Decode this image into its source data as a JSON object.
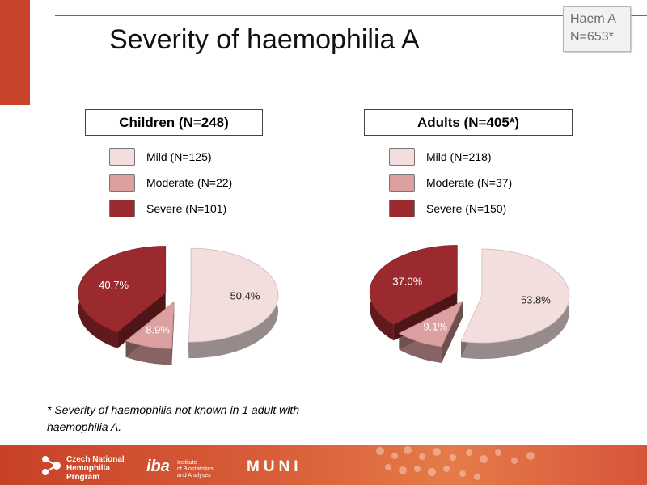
{
  "slide": {
    "title": "Severity of haemophilia A",
    "badge_line1": "Haem A",
    "badge_line2": "N=653*",
    "footnote": "* Severity of haemophilia not known in 1 adult with haemophilia A."
  },
  "colors": {
    "accent": "#c9432a",
    "mild": "#f3dede",
    "moderate": "#dca0a0",
    "severe": "#9b2a2e"
  },
  "chart_data": [
    {
      "type": "pie",
      "title": "Children (N=248)",
      "legend": [
        "Mild (N=125)",
        "Moderate (N=22)",
        "Severe (N=101)"
      ],
      "categories": [
        "Mild",
        "Moderate",
        "Severe"
      ],
      "values": [
        50.4,
        8.9,
        40.7
      ],
      "labels": [
        "50.4%",
        "8.9%",
        "40.7%"
      ],
      "legend_position": "top"
    },
    {
      "type": "pie",
      "title": "Adults (N=405*)",
      "legend": [
        "Mild (N=218)",
        "Moderate (N=37)",
        "Severe (N=150)"
      ],
      "categories": [
        "Mild",
        "Moderate",
        "Severe"
      ],
      "values": [
        53.8,
        9.1,
        37.0
      ],
      "labels": [
        "53.8%",
        "9.1%",
        "37.0%"
      ],
      "legend_position": "top"
    }
  ],
  "footer": {
    "logo1_line1": "Czech National",
    "logo1_line2": "Hemophilia",
    "logo1_line3": "Program",
    "logo2_mark": "iba",
    "logo2_line1": "Institute",
    "logo2_line2": "of Biostatistics",
    "logo2_line3": "and Analyses",
    "logo3": "MUNI"
  }
}
